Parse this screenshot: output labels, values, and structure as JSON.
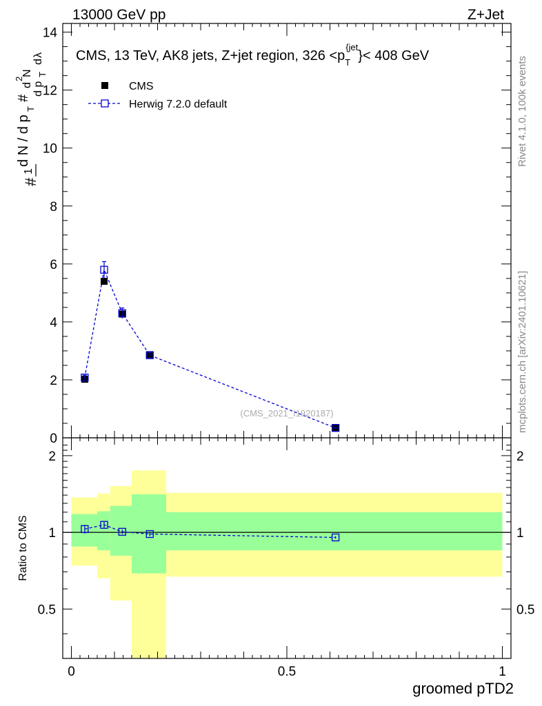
{
  "header": {
    "left": "13000 GeV pp",
    "right": "Z+Jet"
  },
  "side_labels": {
    "rivet": "Rivet 4.1.0,  100k events",
    "mcplots": "mcplots.cern.ch [arXiv:2401.10621]"
  },
  "chart_data": [
    {
      "type": "scatter",
      "title": "CMS, 13 TeV, AK8 jets, Z+jet region, 326 <p_T^{jet}< 408 GeV",
      "watermark": "(CMS_2021_I1920187)",
      "xlabel": "groomed pTD2",
      "ylabel": "1/dN/dp_T d²N/dp_T dλ",
      "xlim": [
        -0.02,
        1.02
      ],
      "ylim": [
        0,
        14.3
      ],
      "yticks": [
        0,
        2,
        4,
        6,
        8,
        10,
        12,
        14
      ],
      "legend_placement": "top-left",
      "series": [
        {
          "name": "CMS",
          "color": "#000000",
          "marker": "filled-square",
          "x": [
            0.031,
            0.076,
            0.118,
            0.182,
            0.613
          ],
          "y": [
            2.02,
            5.4,
            4.27,
            2.87,
            0.35
          ],
          "yerr": [
            0.05,
            0.08,
            0.09,
            0.06,
            0.03
          ]
        },
        {
          "name": "Herwig 7.2.0 default",
          "color": "#0000d0",
          "marker": "open-square",
          "line": "dashed",
          "x": [
            0.031,
            0.076,
            0.118,
            0.182,
            0.613
          ],
          "y": [
            2.08,
            5.8,
            4.3,
            2.85,
            0.34
          ],
          "yerr": [
            0.08,
            0.28,
            0.18,
            0.1,
            0.02
          ]
        }
      ]
    },
    {
      "type": "scatter",
      "ylabel": "Ratio to CMS",
      "xlabel": "groomed pTD2",
      "xlim": [
        -0.02,
        1.02
      ],
      "ylim": [
        0.32,
        2.35
      ],
      "yticks": [
        0.5,
        1,
        2
      ],
      "xticks": [
        0,
        0.5,
        1
      ],
      "bins": [
        {
          "lo": 0.0,
          "hi": 0.06,
          "green": [
            0.88,
            1.18
          ],
          "yellow": [
            0.74,
            1.37
          ]
        },
        {
          "lo": 0.06,
          "hi": 0.09,
          "green": [
            0.85,
            1.21
          ],
          "yellow": [
            0.66,
            1.42
          ]
        },
        {
          "lo": 0.09,
          "hi": 0.14,
          "green": [
            0.81,
            1.27
          ],
          "yellow": [
            0.54,
            1.52
          ]
        },
        {
          "lo": 0.14,
          "hi": 0.22,
          "green": [
            0.69,
            1.41
          ],
          "yellow": [
            0.32,
            1.75
          ]
        },
        {
          "lo": 0.22,
          "hi": 1.0,
          "green": [
            0.85,
            1.2
          ],
          "yellow": [
            0.67,
            1.43
          ]
        }
      ],
      "series": [
        {
          "name": "Herwig 7.2.0 default",
          "color": "#0000d0",
          "x": [
            0.031,
            0.076,
            0.118,
            0.182,
            0.613
          ],
          "y": [
            1.03,
            1.07,
            1.005,
            0.985,
            0.955
          ],
          "yerr": [
            0.04,
            0.03,
            0.02,
            0.02,
            0.01
          ]
        }
      ]
    }
  ]
}
